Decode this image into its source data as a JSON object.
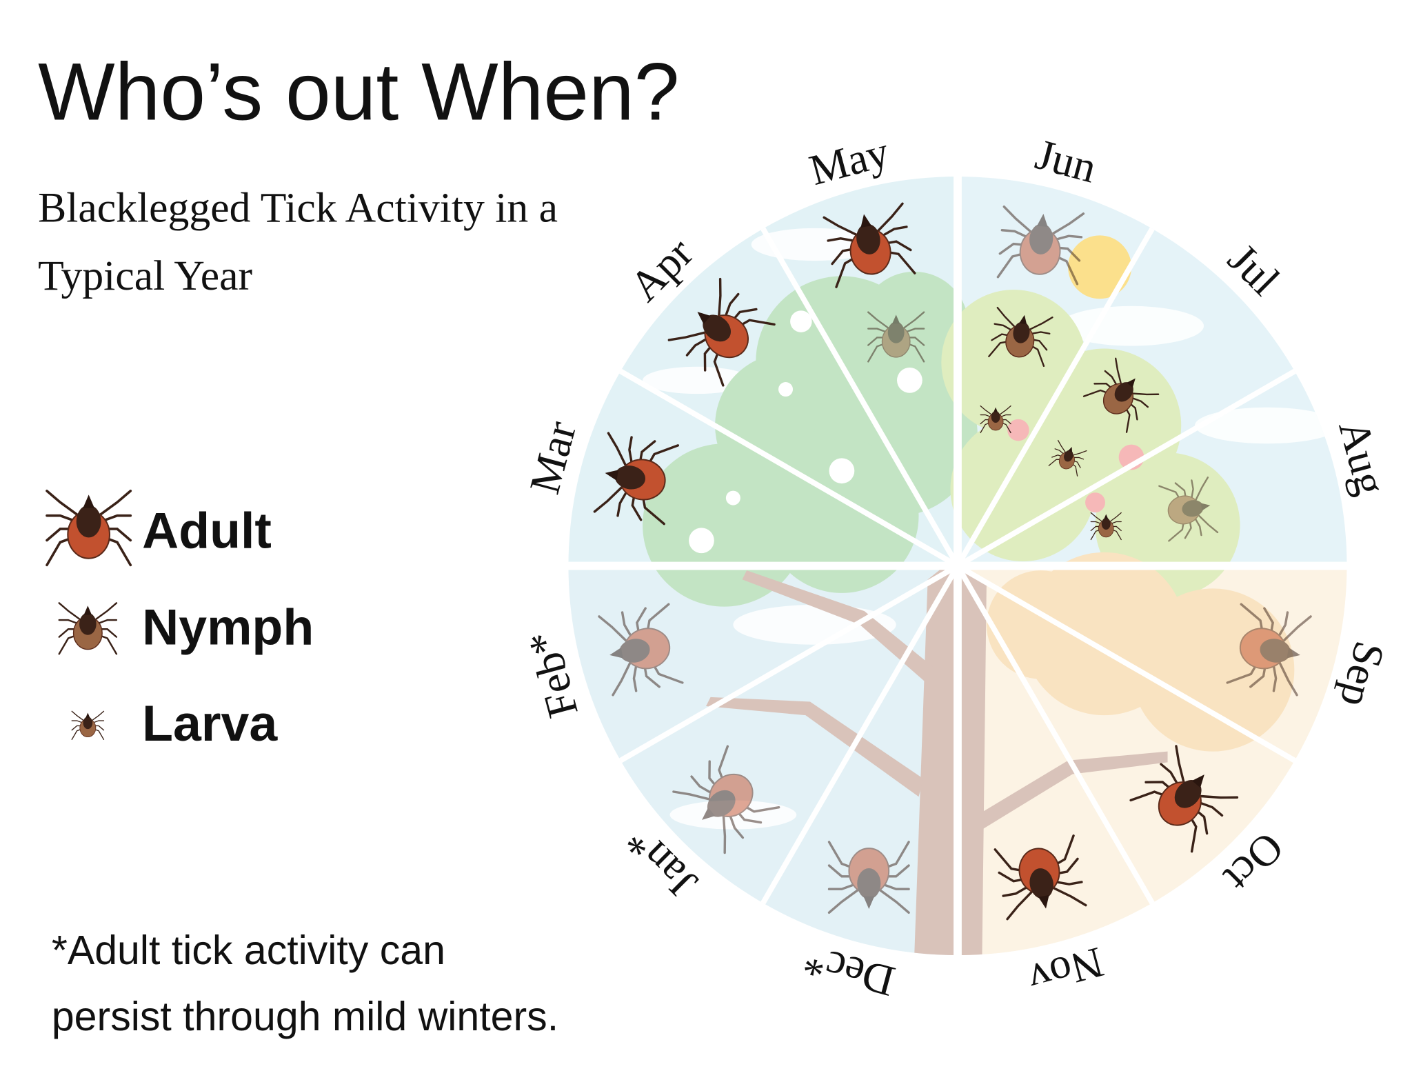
{
  "header": {
    "title": "Who’s out When?",
    "subtitle_lines": [
      "Blacklegged Tick Activity in a",
      "Typical Year"
    ]
  },
  "legend": [
    {
      "label": "Adult"
    },
    {
      "label": "Nymph"
    },
    {
      "label": "Larva"
    }
  ],
  "wheel": {
    "months": [
      "Jan*",
      "Feb*",
      "Mar",
      "Apr",
      "May",
      "Jun",
      "Jul",
      "Aug",
      "Sep",
      "Oct",
      "Nov",
      "Dec*"
    ]
  },
  "footnote_lines": [
    "*Adult tick activity can",
    "persist through mild winters."
  ]
}
